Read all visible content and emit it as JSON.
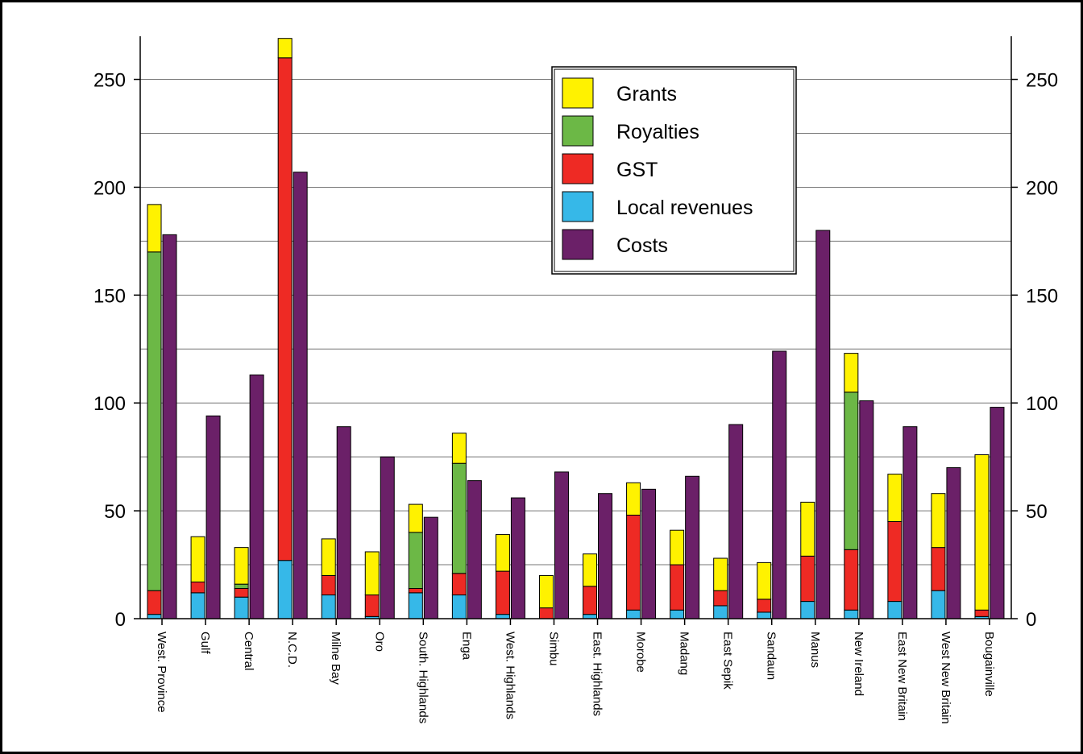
{
  "chart_data": {
    "type": "bar",
    "title": "",
    "xlabel": "",
    "ylabel": "",
    "ylim": [
      0,
      270
    ],
    "yticks": [
      0,
      50,
      100,
      150,
      200,
      250
    ],
    "grid": true,
    "legend_position": "top-right",
    "categories": [
      "West. Province",
      "Gulf",
      "Central",
      "N.C.D.",
      "Milne Bay",
      "Oro",
      "South. Highlands",
      "Enga",
      "West. Highlands",
      "Simbu",
      "East. Highlands",
      "Morobe",
      "Madang",
      "East Sepik",
      "Sandaun",
      "Manus",
      "New Ireland",
      "East New Britain",
      "West New Britain",
      "Bougainville"
    ],
    "series": [
      {
        "name": "Local revenues",
        "stack": "revenue",
        "color": "#36b8e8",
        "values": [
          2,
          12,
          10,
          27,
          11,
          1,
          12,
          11,
          2,
          0,
          2,
          4,
          4,
          6,
          3,
          8,
          4,
          8,
          13,
          1
        ]
      },
      {
        "name": "GST",
        "stack": "revenue",
        "color": "#ee2a24",
        "values": [
          11,
          5,
          4,
          233,
          9,
          10,
          2,
          10,
          20,
          5,
          13,
          44,
          21,
          7,
          6,
          21,
          28,
          37,
          20,
          3
        ]
      },
      {
        "name": "Royalties",
        "stack": "revenue",
        "color": "#6cb846",
        "values": [
          157,
          0,
          2,
          0,
          0,
          0,
          26,
          51,
          0,
          0,
          0,
          0,
          0,
          0,
          0,
          0,
          73,
          0,
          0,
          0
        ]
      },
      {
        "name": "Grants",
        "stack": "revenue",
        "color": "#fff200",
        "values": [
          22,
          21,
          17,
          9,
          17,
          20,
          13,
          14,
          17,
          15,
          15,
          15,
          16,
          15,
          17,
          25,
          18,
          22,
          25,
          72
        ]
      },
      {
        "name": "Costs",
        "stack": "costs",
        "color": "#6b2068",
        "values": [
          178,
          94,
          113,
          207,
          89,
          75,
          47,
          64,
          56,
          68,
          58,
          60,
          66,
          90,
          124,
          180,
          101,
          89,
          70,
          98
        ]
      }
    ],
    "legend_order": [
      "Grants",
      "Royalties",
      "GST",
      "Local revenues",
      "Costs"
    ]
  }
}
